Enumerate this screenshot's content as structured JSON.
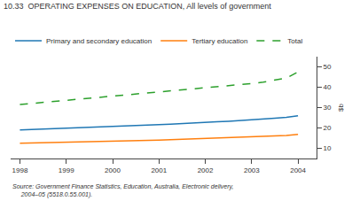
{
  "chart_data": {
    "type": "line",
    "title": "10.33  OPERATING EXPENSES ON EDUCATION, All levels of government",
    "ylabel": "$b",
    "annotations": [
      "Source: Government Finance Statistics, Education, Australia, Electronic delivery,\n     2004–05 (5518.0.55.001)."
    ],
    "x": [
      1998.0,
      1998.25,
      1998.5,
      1998.75,
      1999.0,
      1999.25,
      1999.5,
      1999.75,
      2000.0,
      2000.25,
      2000.5,
      2000.75,
      2001.0,
      2001.25,
      2001.5,
      2001.75,
      2002.0,
      2002.25,
      2002.5,
      2002.75,
      2003.0,
      2003.25,
      2003.5,
      2003.75,
      2004.0
    ],
    "series": [
      {
        "name": "Primary and secondary education",
        "line_style": "solid",
        "values": [
          19.0,
          19.2,
          19.3,
          19.5,
          19.8,
          20.0,
          20.2,
          20.4,
          20.6,
          20.8,
          21.0,
          21.3,
          21.6,
          21.9,
          22.1,
          22.4,
          22.7,
          23.0,
          23.3,
          23.6,
          24.0,
          24.4,
          24.8,
          25.2,
          26.0
        ]
      },
      {
        "name": "Tertiary education",
        "line_style": "solid",
        "values": [
          12.5,
          12.6,
          12.7,
          12.8,
          12.9,
          13.0,
          13.1,
          13.2,
          13.3,
          13.5,
          13.6,
          13.8,
          14.0,
          14.2,
          14.4,
          14.6,
          14.8,
          15.0,
          15.2,
          15.4,
          15.6,
          15.8,
          16.0,
          16.3,
          16.8
        ]
      },
      {
        "name": "Total",
        "line_style": "dashed",
        "values": [
          31.5,
          32.0,
          32.5,
          33.0,
          33.5,
          34.0,
          34.5,
          35.0,
          35.5,
          36.0,
          36.5,
          37.0,
          37.5,
          38.0,
          38.5,
          39.0,
          39.5,
          40.0,
          40.5,
          41.0,
          41.8,
          42.5,
          43.5,
          44.5,
          47.5
        ]
      }
    ],
    "xlim": [
      1997.8,
      2004.4
    ],
    "xticks": [
      1998,
      1999,
      2000,
      2001,
      2002,
      2003,
      2004
    ],
    "ylim": [
      5,
      55
    ],
    "yticks": [
      10,
      20,
      30,
      40,
      50
    ],
    "grid": false
  }
}
